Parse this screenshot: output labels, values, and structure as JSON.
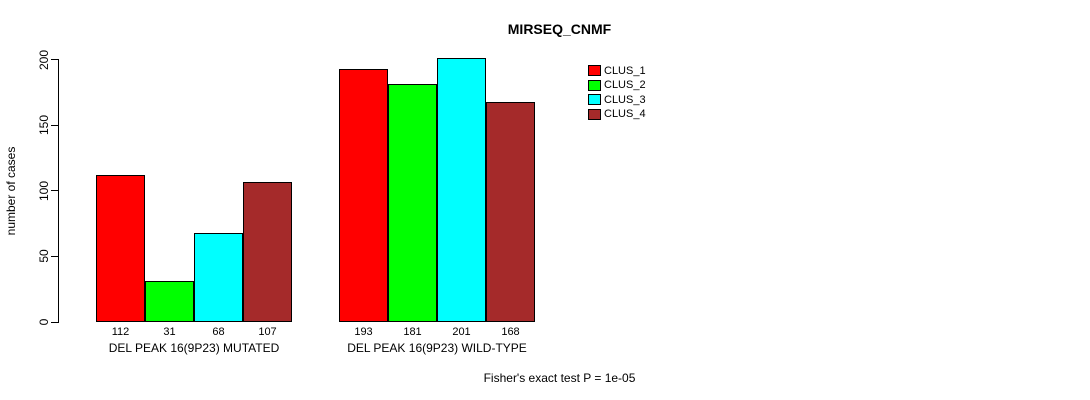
{
  "window": {
    "background": "#ffffff"
  },
  "chart_data": {
    "type": "bar",
    "title": "MIRSEQ_CNMF",
    "ylabel": "number of cases",
    "xlabel": "",
    "ylim": [
      0,
      200
    ],
    "yticks": [
      0,
      50,
      100,
      150,
      200
    ],
    "grid": false,
    "legend_position": "right-of-plot-top",
    "categories": [
      "DEL PEAK 16(9P23) MUTATED",
      "DEL PEAK 16(9P23) WILD-TYPE"
    ],
    "series": [
      {
        "name": "CLUS_1",
        "color": "#ff0000",
        "values": [
          112,
          193
        ]
      },
      {
        "name": "CLUS_2",
        "color": "#00ff00",
        "values": [
          31,
          181
        ]
      },
      {
        "name": "CLUS_3",
        "color": "#00ffff",
        "values": [
          68,
          201
        ]
      },
      {
        "name": "CLUS_4",
        "color": "#a52a2a",
        "values": [
          107,
          168
        ]
      }
    ],
    "bar_value_labels_shown": true,
    "footnote": "Fisher's exact test P = 1e-05"
  }
}
